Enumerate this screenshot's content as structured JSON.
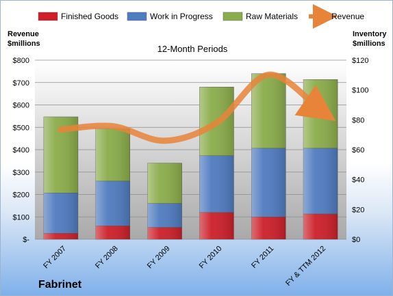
{
  "chart_data": {
    "type": "bar",
    "title": "12-Month Periods",
    "company": "Fabrinet",
    "categories": [
      "FY 2007",
      "FY 2008",
      "FY 2009",
      "FY 2010",
      "FY 2011",
      "FY & TTM 2012"
    ],
    "stacked": true,
    "series": [
      {
        "name": "Finished Goods",
        "axis": "right",
        "values": [
          4,
          9,
          8,
          18,
          15,
          17
        ],
        "color": "#cc1f2a"
      },
      {
        "name": "Work in Progress",
        "axis": "right",
        "values": [
          27,
          30,
          16,
          38,
          46,
          44
        ],
        "color": "#4f7bbf"
      },
      {
        "name": "Raw Materials",
        "axis": "right",
        "values": [
          51,
          35,
          27,
          46,
          50,
          46
        ],
        "color": "#8aac4a"
      },
      {
        "name": "Revenue",
        "axis": "left",
        "type": "line",
        "values": [
          490,
          505,
          440,
          520,
          735,
          575
        ],
        "color": "#e8843a"
      }
    ],
    "y_left": {
      "label": "Revenue\n$millions",
      "min": 0,
      "max": 800,
      "ticks": [
        0,
        100,
        200,
        300,
        400,
        500,
        600,
        700,
        800
      ],
      "tick_labels": [
        "$-",
        "$100",
        "$200",
        "$300",
        "$400",
        "$500",
        "$600",
        "$700",
        "$800"
      ]
    },
    "y_right": {
      "label": "Inventory\n$millions",
      "min": 0,
      "max": 120,
      "ticks": [
        0,
        20,
        40,
        60,
        80,
        100,
        120
      ],
      "tick_labels": [
        "$0",
        "$20",
        "$40",
        "$60",
        "$80",
        "$100",
        "$120"
      ]
    },
    "grid": true,
    "legend_position": "top"
  }
}
